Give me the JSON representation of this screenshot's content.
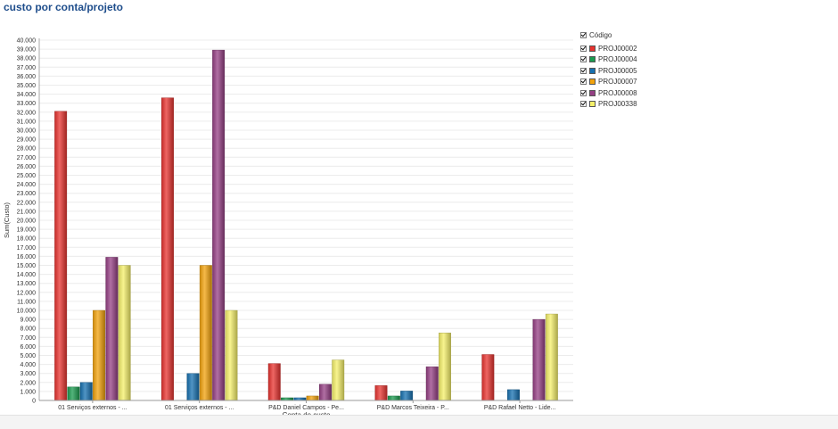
{
  "page_title": "custo por conta/projeto",
  "chart_data": {
    "type": "bar",
    "title": "custo por conta/projeto",
    "xlabel": "Conta de custo",
    "ylabel": "Sum(Custo)",
    "ylim": [
      0,
      40000
    ],
    "ytick_step": 1000,
    "ytick_labels": [
      "0",
      "1.000",
      "2.000",
      "3.000",
      "4.000",
      "5.000",
      "6.000",
      "7.000",
      "8.000",
      "9.000",
      "10.000",
      "11.000",
      "12.000",
      "13.000",
      "14.000",
      "15.000",
      "16.000",
      "17.000",
      "18.000",
      "19.000",
      "20.000",
      "21.000",
      "22.000",
      "23.000",
      "24.000",
      "25.000",
      "26.000",
      "27.000",
      "28.000",
      "29.000",
      "30.000",
      "31.000",
      "32.000",
      "33.000",
      "34.000",
      "35.000",
      "36.000",
      "37.000",
      "38.000",
      "39.000",
      "40.000"
    ],
    "categories": [
      "01 Serviços externos - ...",
      "01 Serviços externos - ...",
      "P&D Daniel Campos - Pe...",
      "P&D Marcos Teixeira - P...",
      "P&D Rafael Netto - Lide..."
    ],
    "grid": true,
    "legend_position": "right",
    "legend_title": "Código",
    "series": [
      {
        "name": "PROJ00002",
        "color": "#e8332f",
        "values": [
          32100,
          33600,
          4100,
          1650,
          5100
        ]
      },
      {
        "name": "PROJ00004",
        "color": "#1a9b4f",
        "values": [
          1500,
          0,
          300,
          500,
          0
        ]
      },
      {
        "name": "PROJ00005",
        "color": "#1670b0",
        "values": [
          2000,
          3000,
          300,
          1050,
          1200
        ]
      },
      {
        "name": "PROJ00007",
        "color": "#f2a20c",
        "values": [
          10000,
          15000,
          500,
          0,
          0
        ]
      },
      {
        "name": "PROJ00008",
        "color": "#953f84",
        "values": [
          15900,
          38900,
          1800,
          3750,
          9000
        ]
      },
      {
        "name": "PROJ00338",
        "color": "#f5f06a",
        "values": [
          15000,
          10000,
          4500,
          7500,
          9600
        ]
      }
    ]
  }
}
